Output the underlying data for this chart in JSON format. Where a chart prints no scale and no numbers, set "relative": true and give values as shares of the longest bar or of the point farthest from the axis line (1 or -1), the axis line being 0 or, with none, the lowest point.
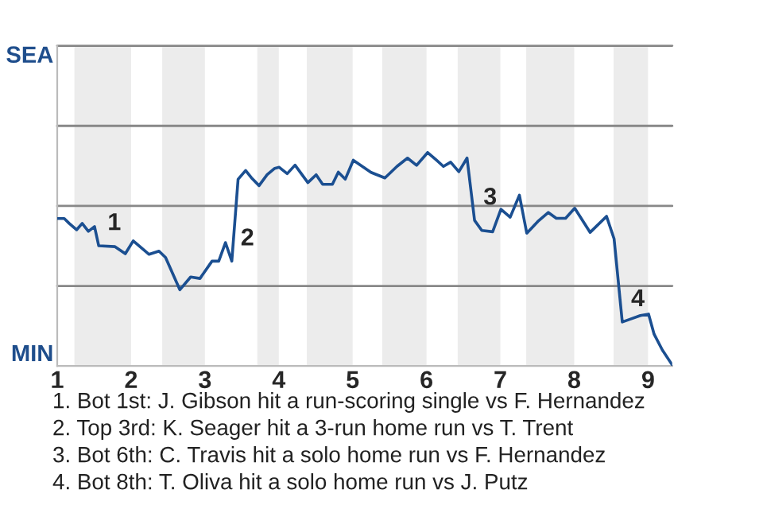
{
  "chart_data": {
    "type": "line",
    "relative": true,
    "x": [
      1.0,
      1.095,
      1.162,
      1.262,
      1.338,
      1.422,
      1.505,
      1.562,
      1.783,
      1.922,
      2.029,
      2.244,
      2.378,
      2.467,
      2.66,
      2.807,
      2.933,
      3.096,
      3.187,
      3.278,
      3.364,
      3.449,
      3.551,
      3.631,
      3.733,
      3.842,
      3.945,
      4.006,
      4.114,
      4.22,
      4.394,
      4.506,
      4.594,
      4.726,
      4.806,
      4.9,
      5.009,
      5.249,
      5.437,
      5.6,
      5.743,
      5.866,
      6.016,
      6.133,
      6.229,
      6.327,
      6.438,
      6.549,
      6.651,
      6.749,
      6.896,
      7.008,
      7.133,
      7.258,
      7.358,
      7.508,
      7.65,
      7.758,
      7.883,
      8.007,
      8.216,
      8.438,
      8.54,
      8.651,
      8.749,
      8.896,
      9.007,
      9.082,
      9.193,
      9.327
    ],
    "series": [
      {
        "color": "#1b4f91",
        "values": [
          0.691,
          0.691,
          0.668,
          0.638,
          0.668,
          0.631,
          0.653,
          0.563,
          0.559,
          0.526,
          0.586,
          0.523,
          0.538,
          0.508,
          0.357,
          0.417,
          0.41,
          0.491,
          0.491,
          0.578,
          0.491,
          0.875,
          0.916,
          0.881,
          0.845,
          0.896,
          0.926,
          0.931,
          0.901,
          0.941,
          0.859,
          0.896,
          0.851,
          0.851,
          0.908,
          0.875,
          0.964,
          0.907,
          0.881,
          0.935,
          0.974,
          0.94,
          1,
          0.965,
          0.935,
          0.955,
          0.91,
          0.974,
          0.682,
          0.635,
          0.629,
          0.734,
          0.697,
          0.8,
          0.622,
          0.677,
          0.719,
          0.692,
          0.692,
          0.739,
          0.626,
          0.701,
          0.596,
          0.206,
          0.218,
          0.236,
          0.243,
          0.149,
          0.075,
          0.005
        ]
      }
    ],
    "xlim": [
      1,
      9.327
    ],
    "xticks": [
      1,
      2,
      3,
      4,
      5,
      6,
      7,
      8,
      9
    ],
    "ref_lines": [
      {
        "axis": "y",
        "value": 0.375,
        "color": "#888888"
      },
      {
        "axis": "y",
        "value": 0.75,
        "color": "#888888"
      },
      {
        "axis": "y",
        "value": 1.125,
        "color": "#888888"
      },
      {
        "axis": "y",
        "value": 1.5,
        "color": "#888888"
      }
    ],
    "marker": "none",
    "line_style": "solid",
    "bands": [
      {
        "axis": "x",
        "from": 1.233,
        "to": 2,
        "color": "#ececec"
      },
      {
        "axis": "x",
        "from": 2.422,
        "to": 3,
        "color": "#ececec"
      },
      {
        "axis": "x",
        "from": 3.709,
        "to": 4,
        "color": "#ececec"
      },
      {
        "axis": "x",
        "from": 4.38,
        "to": 5,
        "color": "#ececec"
      },
      {
        "axis": "x",
        "from": 5.4,
        "to": 6,
        "color": "#ececec"
      },
      {
        "axis": "x",
        "from": 6.422,
        "to": 7,
        "color": "#ececec"
      },
      {
        "axis": "x",
        "from": 7.35,
        "to": 8,
        "color": "#ececec"
      },
      {
        "axis": "x",
        "from": 8.533,
        "to": 9,
        "color": "#ececec"
      }
    ],
    "annotations": [
      "SEA",
      "MIN",
      {
        "text": "1",
        "x": 1.562,
        "y": 0.563
      },
      {
        "text": "2",
        "x": 3.364,
        "y": 0.491
      },
      {
        "text": "3",
        "x": 6.651,
        "y": 0.682
      },
      {
        "text": "4",
        "x": 8.651,
        "y": 0.206
      },
      "1. Bot 1st: J. Gibson hit a run-scoring single vs F. Hernandez",
      "2. Top 3rd: K. Seager hit a 3-run home run vs T. Trent",
      "3. Bot 6th: C. Travis hit a solo home run vs F. Hernandez",
      "4. Bot 8th: T. Oliva hit a solo home run vs J. Putz"
    ]
  }
}
